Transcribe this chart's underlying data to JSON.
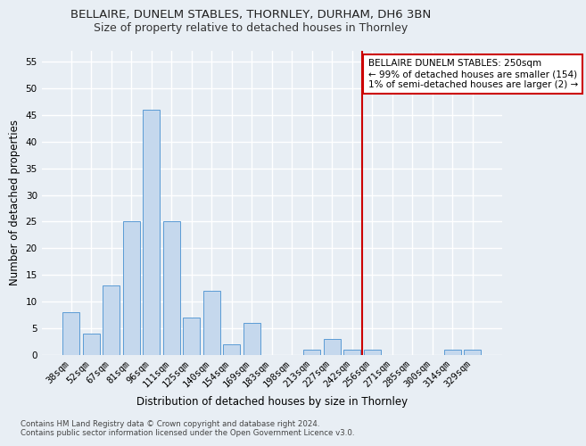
{
  "title": "BELLAIRE, DUNELM STABLES, THORNLEY, DURHAM, DH6 3BN",
  "subtitle": "Size of property relative to detached houses in Thornley",
  "xlabel": "Distribution of detached houses by size in Thornley",
  "ylabel": "Number of detached properties",
  "footnote1": "Contains HM Land Registry data © Crown copyright and database right 2024.",
  "footnote2": "Contains public sector information licensed under the Open Government Licence v3.0.",
  "categories": [
    "38sqm",
    "52sqm",
    "67sqm",
    "81sqm",
    "96sqm",
    "111sqm",
    "125sqm",
    "140sqm",
    "154sqm",
    "169sqm",
    "183sqm",
    "198sqm",
    "213sqm",
    "227sqm",
    "242sqm",
    "256sqm",
    "271sqm",
    "285sqm",
    "300sqm",
    "314sqm",
    "329sqm"
  ],
  "values": [
    8,
    4,
    13,
    25,
    46,
    25,
    7,
    12,
    2,
    6,
    0,
    0,
    1,
    3,
    1,
    1,
    0,
    0,
    0,
    1,
    1
  ],
  "bar_color": "#c5d8ed",
  "bar_edge_color": "#5b9bd5",
  "vline_x": 14.5,
  "vline_color": "#cc0000",
  "annotation_text": "BELLAIRE DUNELM STABLES: 250sqm\n← 99% of detached houses are smaller (154)\n1% of semi-detached houses are larger (2) →",
  "annotation_box_color": "#ffffff",
  "annotation_box_edge_color": "#cc0000",
  "ylim": [
    0,
    57
  ],
  "yticks": [
    0,
    5,
    10,
    15,
    20,
    25,
    30,
    35,
    40,
    45,
    50,
    55
  ],
  "background_color": "#e8eef4",
  "grid_color": "#ffffff",
  "title_fontsize": 9.5,
  "subtitle_fontsize": 9,
  "axis_label_fontsize": 8.5,
  "tick_fontsize": 7.5,
  "annot_fontsize": 7.5
}
